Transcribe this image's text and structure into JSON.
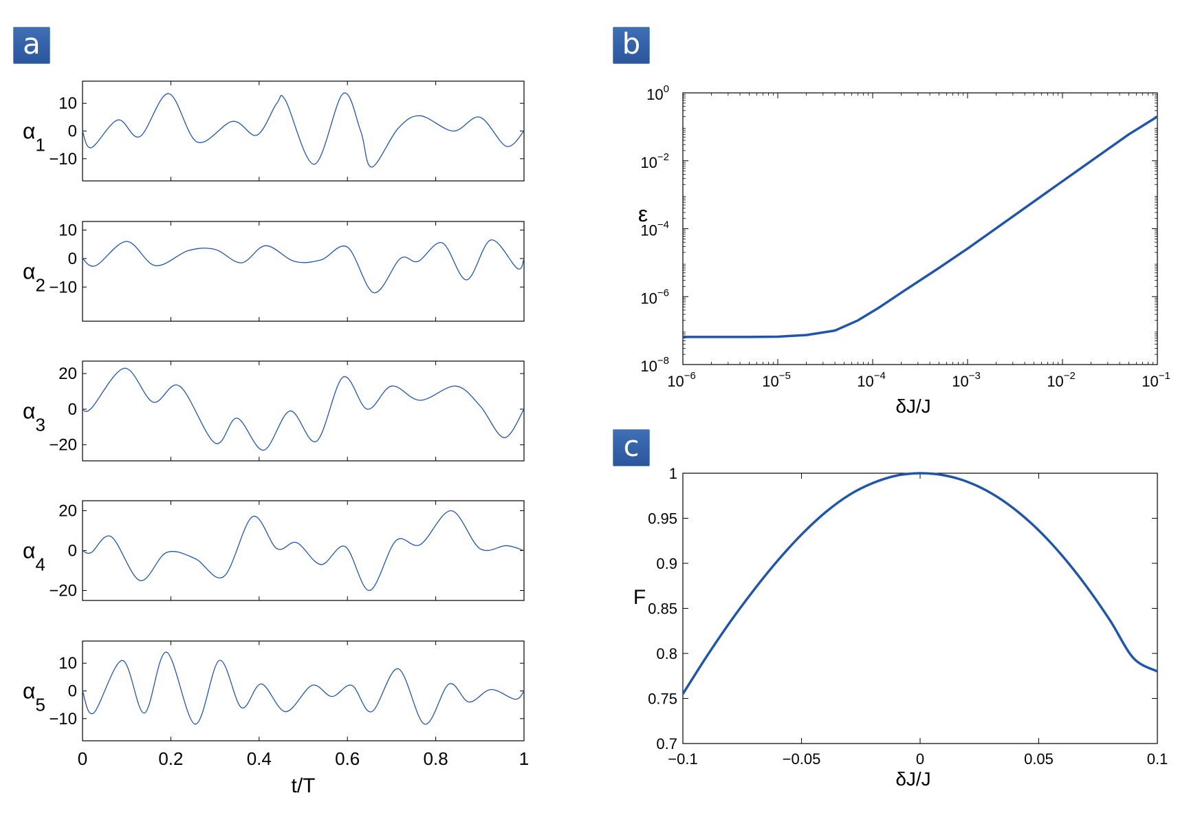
{
  "panels": {
    "a": "a",
    "b": "b",
    "c": "c"
  },
  "colors": {
    "line": "#2255a8",
    "axis": "#000000",
    "badge": "#3565aa"
  },
  "chart_data": [
    {
      "type": "line",
      "panel": "a",
      "xlabel": "t/T",
      "xlim": [
        0,
        1
      ],
      "xticks": [
        0,
        0.2,
        0.4,
        0.6,
        0.8,
        1
      ],
      "xticklabels": [
        "0",
        "0.2",
        "0.4",
        "0.6",
        "0.8",
        "1"
      ],
      "subplots": [
        {
          "ylabel": "α",
          "ylabel_sub": "1",
          "ylim": [
            -18,
            18
          ],
          "yticks": [
            10,
            0,
            -10
          ],
          "yticklabels": [
            "10",
            "0",
            "−10"
          ],
          "x": [
            0,
            0.02,
            0.08,
            0.13,
            0.195,
            0.26,
            0.34,
            0.395,
            0.44,
            0.46,
            0.525,
            0.59,
            0.63,
            0.655,
            0.715,
            0.765,
            0.84,
            0.9,
            0.96,
            1
          ],
          "y": [
            0,
            -6,
            4,
            -2,
            13.5,
            -4,
            3.5,
            -1.5,
            10,
            11,
            -12,
            13.5,
            0,
            -13,
            1,
            5.5,
            0,
            5,
            -5.5,
            0
          ]
        },
        {
          "ylabel": "α",
          "ylabel_sub": "2",
          "ylim": [
            -22,
            13
          ],
          "yticks": [
            10,
            0,
            -10
          ],
          "yticklabels": [
            "10",
            "0",
            "−10"
          ],
          "x": [
            0,
            0.03,
            0.1,
            0.165,
            0.24,
            0.3,
            0.36,
            0.415,
            0.48,
            0.54,
            0.6,
            0.66,
            0.72,
            0.76,
            0.815,
            0.87,
            0.925,
            0.985,
            1
          ],
          "y": [
            0,
            -2.5,
            6,
            -2.5,
            2.8,
            3.2,
            -1.5,
            4.5,
            -1,
            -0.5,
            4,
            -12,
            0,
            -1,
            5.5,
            -7.5,
            6.5,
            -3.5,
            0
          ]
        },
        {
          "ylabel": "α",
          "ylabel_sub": "3",
          "ylim": [
            -29,
            27
          ],
          "yticks": [
            20,
            0,
            -20
          ],
          "yticklabels": [
            "20",
            "0",
            "−20"
          ],
          "x": [
            0,
            0.02,
            0.095,
            0.16,
            0.22,
            0.3,
            0.35,
            0.41,
            0.47,
            0.53,
            0.59,
            0.645,
            0.7,
            0.765,
            0.845,
            0.9,
            0.955,
            1
          ],
          "y": [
            0,
            0.5,
            23,
            4,
            13,
            -19,
            -5,
            -23,
            -1,
            -18,
            18,
            0,
            13,
            5,
            13,
            2,
            -16,
            0
          ]
        },
        {
          "ylabel": "α",
          "ylabel_sub": "4",
          "ylim": [
            -25,
            25
          ],
          "yticks": [
            20,
            0,
            -20
          ],
          "yticklabels": [
            "20",
            "0",
            "−20"
          ],
          "x": [
            0,
            0.02,
            0.065,
            0.13,
            0.19,
            0.255,
            0.32,
            0.385,
            0.44,
            0.485,
            0.54,
            0.595,
            0.65,
            0.71,
            0.765,
            0.835,
            0.9,
            0.96,
            1
          ],
          "y": [
            0,
            -1,
            7,
            -15,
            -1,
            -4,
            -13,
            17,
            1,
            4,
            -7,
            2,
            -20,
            5,
            3,
            20,
            1,
            2.5,
            0
          ]
        },
        {
          "ylabel": "α",
          "ylabel_sub": "5",
          "ylim": [
            -18,
            18
          ],
          "yticks": [
            10,
            0,
            -10
          ],
          "yticklabels": [
            "10",
            "0",
            "−10"
          ],
          "x": [
            0,
            0.025,
            0.09,
            0.14,
            0.19,
            0.255,
            0.31,
            0.36,
            0.405,
            0.46,
            0.52,
            0.565,
            0.61,
            0.655,
            0.715,
            0.775,
            0.83,
            0.875,
            0.925,
            0.98,
            1
          ],
          "y": [
            0,
            -8,
            11,
            -8,
            14,
            -12,
            11,
            -6,
            2.5,
            -7.5,
            2,
            -2,
            2,
            -7.5,
            8,
            -12,
            2.5,
            -4,
            0.5,
            -3,
            0
          ]
        }
      ]
    },
    {
      "type": "line",
      "panel": "b",
      "xlabel": "δJ/J",
      "ylabel": "ε",
      "xscale": "log",
      "yscale": "log",
      "xlim": [
        1e-06,
        0.1
      ],
      "ylim": [
        1e-08,
        1
      ],
      "xticks": [
        1e-06,
        1e-05,
        0.0001,
        0.001,
        0.01,
        0.1
      ],
      "xticklabels": [
        {
          "base": "10",
          "exp": "−6"
        },
        {
          "base": "10",
          "exp": "−5"
        },
        {
          "base": "10",
          "exp": "−4"
        },
        {
          "base": "10",
          "exp": "−3"
        },
        {
          "base": "10",
          "exp": "−2"
        },
        {
          "base": "10",
          "exp": "−1"
        }
      ],
      "yticks": [
        1e-08,
        1e-06,
        0.0001,
        0.01,
        1
      ],
      "yticklabels": [
        {
          "base": "10",
          "exp": "−8"
        },
        {
          "base": "10",
          "exp": "−6"
        },
        {
          "base": "10",
          "exp": "−4"
        },
        {
          "base": "10",
          "exp": "−2"
        },
        {
          "base": "10",
          "exp": "0"
        }
      ],
      "x": [
        1e-06,
        5e-06,
        1e-05,
        2e-05,
        4e-05,
        7e-05,
        0.00012,
        0.0002,
        0.0005,
        0.001,
        0.01,
        0.05,
        0.1
      ],
      "y": [
        6.5e-08,
        6.5e-08,
        6.6e-08,
        7.4e-08,
        1e-07,
        2e-07,
        5e-07,
        1.3e-06,
        7e-06,
        2.6e-05,
        0.0025,
        0.06,
        0.2
      ]
    },
    {
      "type": "line",
      "panel": "c",
      "xlabel": "δJ/J",
      "ylabel": "F",
      "xlim": [
        -0.1,
        0.1
      ],
      "ylim": [
        0.7,
        1
      ],
      "xticks": [
        -0.1,
        -0.05,
        0,
        0.05,
        0.1
      ],
      "xticklabels": [
        "−0.1",
        "−0.05",
        "0",
        "0.05",
        "0.1"
      ],
      "yticks": [
        0.7,
        0.75,
        0.8,
        0.85,
        0.9,
        0.95,
        1
      ],
      "yticklabels": [
        "0.7",
        "0.75",
        "0.8",
        "0.85",
        "0.9",
        "0.95",
        "1"
      ],
      "x": [
        -0.1,
        -0.09,
        -0.08,
        -0.07,
        -0.06,
        -0.05,
        -0.04,
        -0.03,
        -0.02,
        -0.01,
        0,
        0.01,
        0.02,
        0.03,
        0.04,
        0.05,
        0.06,
        0.07,
        0.08,
        0.09,
        0.1
      ],
      "y": [
        0.755,
        0.7965,
        0.8352,
        0.8707,
        0.9031,
        0.9319,
        0.9564,
        0.9757,
        0.989,
        0.9973,
        1.0,
        0.9977,
        0.9904,
        0.9778,
        0.9598,
        0.9366,
        0.9081,
        0.8748,
        0.8369,
        0.7946,
        0.78
      ]
    }
  ]
}
